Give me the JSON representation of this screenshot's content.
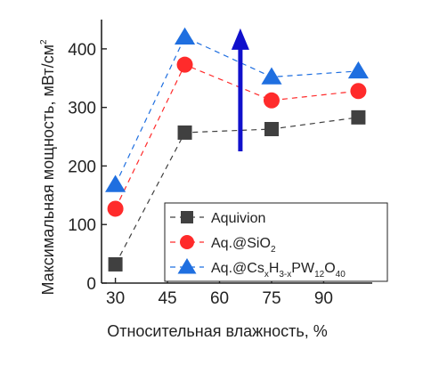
{
  "chart_data": {
    "type": "line",
    "xlabel": "Относительная влажность, %",
    "ylabel_main": "Максимальная мощность, мВт/см",
    "ylabel_sup": "2",
    "xlim": [
      26,
      104
    ],
    "ylim": [
      0,
      450
    ],
    "xticks": [
      30,
      45,
      60,
      75,
      90
    ],
    "yticks": [
      0,
      100,
      200,
      300,
      400
    ],
    "x": [
      30,
      50,
      75,
      100
    ],
    "grid": false,
    "legend_position": "bottom-right",
    "series": [
      {
        "name": "Aquivion",
        "legend_label": [
          {
            "t": "Aquivion",
            "s": "none"
          }
        ],
        "marker": "square",
        "color": "#404040",
        "values": [
          32,
          257,
          263,
          283
        ]
      },
      {
        "name": "Aq.@SiO2",
        "legend_label": [
          {
            "t": "Aq.@SiO",
            "s": "none"
          },
          {
            "t": "2",
            "s": "sub"
          }
        ],
        "marker": "circle",
        "color": "#ff2b2b",
        "values": [
          127,
          373,
          312,
          328
        ]
      },
      {
        "name": "Aq.@CsxH3-xPW12O40",
        "legend_label": [
          {
            "t": "Aq.@Cs",
            "s": "none"
          },
          {
            "t": "x",
            "s": "sub"
          },
          {
            "t": "H",
            "s": "none"
          },
          {
            "t": "3-x",
            "s": "sub"
          },
          {
            "t": "PW",
            "s": "none"
          },
          {
            "t": "12",
            "s": "sub"
          },
          {
            "t": "O",
            "s": "none"
          },
          {
            "t": "40",
            "s": "sub"
          }
        ],
        "marker": "triangle",
        "color": "#1f6fe0",
        "values": [
          168,
          420,
          352,
          362
        ]
      }
    ],
    "annotation": {
      "type": "arrow",
      "direction": "up",
      "color": "#1010cc",
      "x": 66,
      "y_from": 225,
      "y_to": 435
    }
  }
}
